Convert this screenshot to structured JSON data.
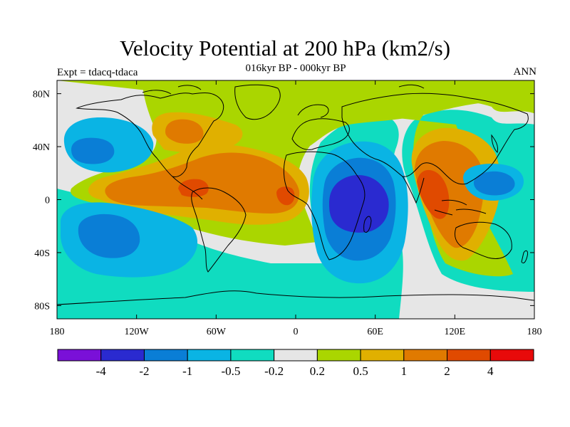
{
  "title": "Velocity Potential at 200 hPa (km2/s)",
  "subtitle": "016kyr BP - 000kyr BP",
  "left_label": "Expt = tdacq-tdaca",
  "right_label": "ANN",
  "map": {
    "projection": "cylindrical equidistant",
    "lon_range": [
      -180,
      180
    ],
    "lat_range": [
      -90,
      90
    ],
    "x_ticks": [
      "180",
      "120W",
      "60W",
      "0",
      "60E",
      "120E",
      "180"
    ],
    "y_ticks": [
      "80N",
      "40N",
      "0",
      "40S",
      "80S"
    ],
    "coastlines": "black outlines"
  },
  "colorbar": {
    "labels": [
      "-4",
      "-2",
      "-1",
      "-0.5",
      "-0.2",
      "0.2",
      "0.5",
      "1",
      "2",
      "4"
    ],
    "colors": [
      "#7a10d8",
      "#2a2ad0",
      "#0a7ed6",
      "#0ab4e4",
      "#10dcc0",
      "#e6e6e6",
      "#aad600",
      "#e0b000",
      "#e07a00",
      "#e04a00",
      "#e80a0a"
    ]
  }
}
